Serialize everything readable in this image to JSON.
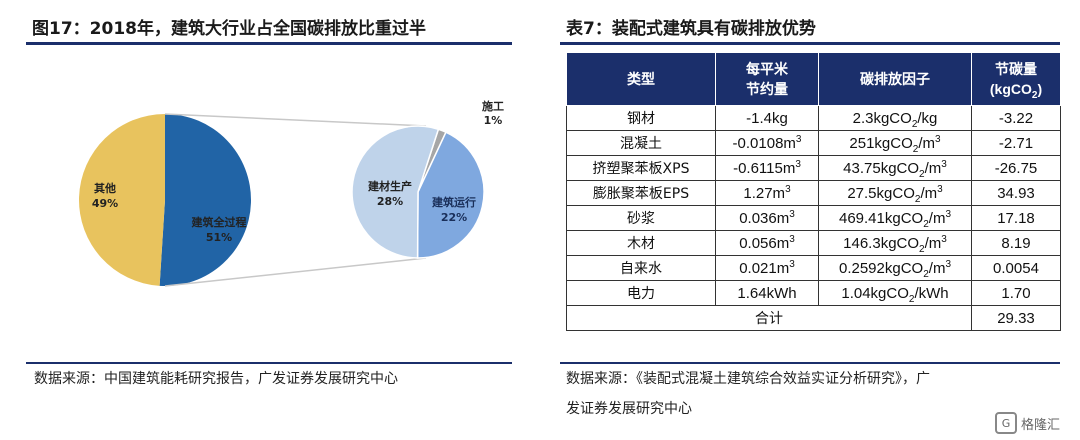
{
  "left": {
    "title": "图17：2018年，建筑大行业占全国碳排放比重过半",
    "source": "数据来源：中国建筑能耗研究报告，广发证券发展研究中心"
  },
  "right": {
    "title": "表7：装配式建筑具有碳排放优势",
    "source_line1": "数据来源：《装配式混凝土建筑综合效益实证分析研究》，广",
    "source_line2": "发证券发展研究中心"
  },
  "chart_data": {
    "type": "pie",
    "main": [
      {
        "name": "其他",
        "value": 49,
        "label": "49%",
        "color": "#e8c35e"
      },
      {
        "name": "建筑全过程",
        "value": 51,
        "label": "51%",
        "color": "#2164a6"
      }
    ],
    "breakdown": [
      {
        "name": "施工",
        "value": 1,
        "label": "1%",
        "color": "#a6a6a6"
      },
      {
        "name": "建筑运行",
        "value": 22,
        "label": "22%",
        "color": "#7fa8df"
      },
      {
        "name": "建材生产",
        "value": 28,
        "label": "28%",
        "color": "#bfd3ea"
      }
    ]
  },
  "table": {
    "headers": [
      "类型",
      "每平米\n节约量",
      "碳排放因子",
      "节碳量\n(kgCO₂)"
    ],
    "rows": [
      {
        "type": "钢材",
        "saving": "-1.4kg",
        "factor": "2.3kgCO₂/kg",
        "carbon": "-3.22"
      },
      {
        "type": "混凝土",
        "saving": "-0.0108m³",
        "factor": "251kgCO₂/m³",
        "carbon": "-2.71"
      },
      {
        "type": "挤塑聚苯板XPS",
        "saving": "-0.6115m³",
        "factor": "43.75kgCO₂/m³",
        "carbon": "-26.75"
      },
      {
        "type": "膨胀聚苯板EPS",
        "saving": "1.27m³",
        "factor": "27.5kgCO₂/m³",
        "carbon": "34.93"
      },
      {
        "type": "砂浆",
        "saving": "0.036m³",
        "factor": "469.41kgCO₂/m³",
        "carbon": "17.18"
      },
      {
        "type": "木材",
        "saving": "0.056m³",
        "factor": "146.3kgCO₂/m³",
        "carbon": "8.19"
      },
      {
        "type": "自来水",
        "saving": "0.021m³",
        "factor": "0.2592kgCO₂/m³",
        "carbon": "0.0054"
      },
      {
        "type": "电力",
        "saving": "1.64kWh",
        "factor": "1.04kgCO₂/kWh",
        "carbon": "1.70"
      }
    ],
    "total_label": "合计",
    "total_value": "29.33"
  },
  "watermark": "格隆汇"
}
